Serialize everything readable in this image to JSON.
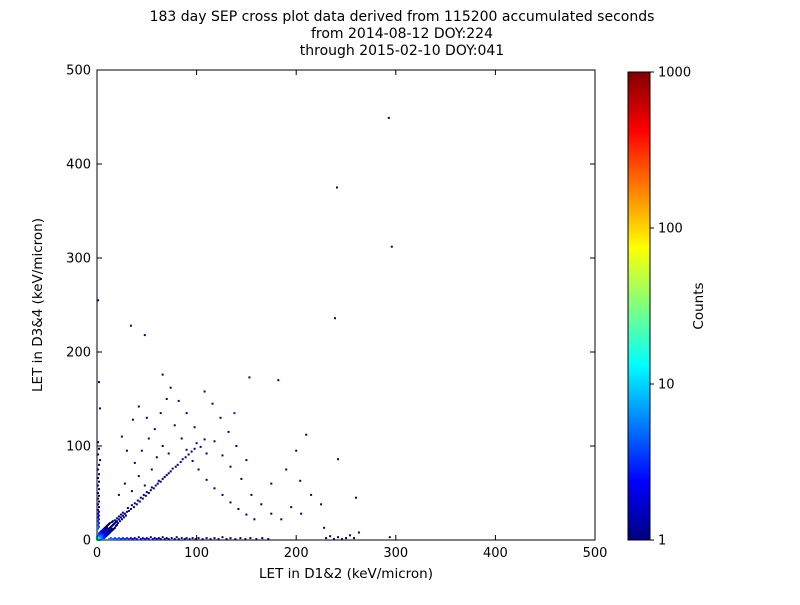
{
  "chart_data": {
    "type": "scatter",
    "title_lines": [
      "183 day SEP cross plot data derived from 115200 accumulated seconds",
      "from 2014-08-12 DOY:224",
      "through 2015-02-10 DOY:041"
    ],
    "xlabel": "LET in D1&2 (keV/micron)",
    "ylabel": "LET in D3&4 (keV/micron)",
    "xlim": [
      0,
      500
    ],
    "ylim": [
      0,
      500
    ],
    "xticks": [
      0,
      100,
      200,
      300,
      400,
      500
    ],
    "yticks": [
      0,
      100,
      200,
      300,
      400,
      500
    ],
    "grid": false,
    "point_color_low": "#000080",
    "colorbar": {
      "label": "Counts",
      "scale": "log",
      "range": [
        1,
        1000
      ],
      "ticks": [
        1,
        10,
        100,
        1000
      ],
      "colormap": "jet",
      "stops": [
        {
          "offset": "0%",
          "color": "#000080"
        },
        {
          "offset": "12.5%",
          "color": "#0000ff"
        },
        {
          "offset": "37.5%",
          "color": "#00ffff"
        },
        {
          "offset": "62.5%",
          "color": "#ffff00"
        },
        {
          "offset": "87.5%",
          "color": "#ff0000"
        },
        {
          "offset": "100%",
          "color": "#800000"
        }
      ]
    },
    "points": [
      [
        0,
        0,
        25
      ],
      [
        1,
        0,
        22
      ],
      [
        0,
        1,
        22
      ],
      [
        1,
        1,
        20
      ],
      [
        2,
        0,
        16
      ],
      [
        0,
        2,
        16
      ],
      [
        2,
        1,
        15
      ],
      [
        1,
        2,
        15
      ],
      [
        2,
        2,
        13
      ],
      [
        3,
        0,
        12
      ],
      [
        0,
        3,
        12
      ],
      [
        3,
        1,
        11
      ],
      [
        1,
        3,
        11
      ],
      [
        3,
        2,
        10
      ],
      [
        2,
        3,
        10
      ],
      [
        3,
        3,
        9
      ],
      [
        4,
        1,
        8
      ],
      [
        1,
        4,
        8
      ],
      [
        4,
        2,
        8
      ],
      [
        2,
        4,
        8
      ],
      [
        4,
        3,
        7
      ],
      [
        3,
        4,
        7
      ],
      [
        4,
        4,
        7
      ],
      [
        5,
        1,
        6
      ],
      [
        1,
        5,
        6
      ],
      [
        5,
        2,
        6
      ],
      [
        2,
        5,
        6
      ],
      [
        5,
        3,
        5
      ],
      [
        3,
        5,
        5
      ],
      [
        5,
        4,
        5
      ],
      [
        4,
        5,
        5
      ],
      [
        5,
        5,
        5
      ],
      [
        6,
        2,
        4
      ],
      [
        2,
        6,
        4
      ],
      [
        6,
        3,
        4
      ],
      [
        3,
        6,
        4
      ],
      [
        6,
        4,
        4
      ],
      [
        4,
        6,
        4
      ],
      [
        6,
        5,
        4
      ],
      [
        5,
        6,
        4
      ],
      [
        6,
        6,
        4
      ],
      [
        7,
        2,
        3
      ],
      [
        2,
        7,
        3
      ],
      [
        7,
        3,
        3
      ],
      [
        3,
        7,
        3
      ],
      [
        7,
        4,
        3
      ],
      [
        4,
        7,
        3
      ],
      [
        7,
        5,
        3
      ],
      [
        5,
        7,
        3
      ],
      [
        7,
        6,
        3
      ],
      [
        6,
        7,
        3
      ],
      [
        7,
        7,
        3
      ],
      [
        8,
        3,
        3
      ],
      [
        3,
        8,
        3
      ],
      [
        8,
        4,
        3
      ],
      [
        4,
        8,
        3
      ],
      [
        8,
        5,
        2
      ],
      [
        5,
        8,
        2
      ],
      [
        8,
        6,
        2
      ],
      [
        6,
        8,
        2
      ],
      [
        8,
        8,
        2
      ],
      [
        9,
        4,
        2
      ],
      [
        4,
        9,
        2
      ],
      [
        9,
        5,
        2
      ],
      [
        5,
        9,
        2
      ],
      [
        9,
        6,
        2
      ],
      [
        6,
        9,
        2
      ],
      [
        9,
        9,
        2
      ],
      [
        10,
        5,
        2
      ],
      [
        5,
        10,
        2
      ],
      [
        10,
        7,
        2
      ],
      [
        7,
        10,
        2
      ],
      [
        10,
        10,
        2
      ],
      [
        11,
        6,
        2
      ],
      [
        6,
        11,
        2
      ],
      [
        11,
        8,
        1
      ],
      [
        8,
        11,
        1
      ],
      [
        11,
        11,
        2
      ],
      [
        12,
        7,
        1
      ],
      [
        7,
        12,
        1
      ],
      [
        12,
        9,
        1
      ],
      [
        9,
        12,
        1
      ],
      [
        12,
        12,
        1
      ],
      [
        13,
        8,
        1
      ],
      [
        8,
        13,
        1
      ],
      [
        13,
        10,
        1
      ],
      [
        10,
        13,
        1
      ],
      [
        13,
        13,
        1
      ],
      [
        14,
        9,
        1
      ],
      [
        9,
        14,
        1
      ],
      [
        14,
        11,
        1
      ],
      [
        14,
        14,
        1
      ],
      [
        15,
        10,
        1
      ],
      [
        10,
        15,
        1
      ],
      [
        15,
        12,
        1
      ],
      [
        15,
        15,
        1
      ],
      [
        16,
        11,
        1
      ],
      [
        11,
        16,
        1
      ],
      [
        16,
        16,
        1
      ],
      [
        17,
        12,
        1
      ],
      [
        12,
        17,
        1
      ],
      [
        17,
        17,
        1
      ],
      [
        18,
        13,
        1
      ],
      [
        13,
        18,
        1
      ],
      [
        18,
        18,
        1
      ],
      [
        19,
        15,
        1
      ],
      [
        15,
        19,
        1
      ],
      [
        19,
        19,
        1
      ],
      [
        20,
        16,
        1
      ],
      [
        16,
        20,
        1
      ],
      [
        20,
        20,
        1
      ],
      [
        21,
        18,
        1
      ],
      [
        18,
        21,
        1
      ],
      [
        22,
        22,
        1
      ],
      [
        23,
        20,
        1
      ],
      [
        20,
        23,
        1
      ],
      [
        24,
        24,
        1
      ],
      [
        25,
        22,
        1
      ],
      [
        22,
        25,
        1
      ],
      [
        26,
        26,
        1
      ],
      [
        27,
        24,
        1
      ],
      [
        24,
        27,
        1
      ],
      [
        28,
        28,
        1
      ],
      [
        29,
        26,
        1
      ],
      [
        26,
        29,
        1
      ],
      [
        30,
        30,
        1
      ],
      [
        32,
        31,
        1
      ],
      [
        31,
        34,
        1
      ],
      [
        34,
        33,
        1
      ],
      [
        35,
        37,
        1
      ],
      [
        37,
        35,
        1
      ],
      [
        38,
        39,
        1
      ],
      [
        40,
        38,
        1
      ],
      [
        41,
        42,
        1
      ],
      [
        43,
        41,
        1
      ],
      [
        44,
        45,
        1
      ],
      [
        46,
        44,
        1
      ],
      [
        47,
        48,
        1
      ],
      [
        49,
        47,
        1
      ],
      [
        50,
        51,
        1
      ],
      [
        52,
        50,
        1
      ],
      [
        54,
        53,
        1
      ],
      [
        55,
        56,
        1
      ],
      [
        57,
        55,
        1
      ],
      [
        59,
        58,
        1
      ],
      [
        61,
        60,
        1
      ],
      [
        62,
        63,
        1
      ],
      [
        64,
        62,
        1
      ],
      [
        66,
        65,
        1
      ],
      [
        68,
        67,
        1
      ],
      [
        70,
        69,
        1
      ],
      [
        72,
        71,
        1
      ],
      [
        74,
        73,
        1
      ],
      [
        76,
        76,
        1
      ],
      [
        79,
        78,
        1
      ],
      [
        81,
        80,
        1
      ],
      [
        84,
        83,
        1
      ],
      [
        86,
        86,
        1
      ],
      [
        89,
        88,
        1
      ],
      [
        92,
        91,
        1
      ],
      [
        95,
        94,
        1
      ],
      [
        98,
        97,
        1
      ],
      [
        100,
        103,
        1
      ],
      [
        104,
        99,
        1
      ],
      [
        108,
        107,
        1
      ],
      [
        12,
        1,
        6
      ],
      [
        14,
        2,
        5
      ],
      [
        16,
        1,
        5
      ],
      [
        18,
        2,
        4
      ],
      [
        20,
        1,
        4
      ],
      [
        22,
        2,
        4
      ],
      [
        24,
        1,
        3
      ],
      [
        26,
        2,
        3
      ],
      [
        28,
        1,
        3
      ],
      [
        30,
        2,
        3
      ],
      [
        32,
        1,
        3
      ],
      [
        34,
        2,
        2
      ],
      [
        36,
        1,
        2
      ],
      [
        38,
        2,
        2
      ],
      [
        40,
        1,
        2
      ],
      [
        42,
        3,
        2
      ],
      [
        44,
        1,
        2
      ],
      [
        46,
        2,
        2
      ],
      [
        48,
        1,
        2
      ],
      [
        50,
        2,
        2
      ],
      [
        52,
        1,
        2
      ],
      [
        54,
        3,
        1
      ],
      [
        56,
        1,
        2
      ],
      [
        58,
        2,
        1
      ],
      [
        60,
        1,
        2
      ],
      [
        62,
        2,
        1
      ],
      [
        64,
        1,
        1
      ],
      [
        66,
        3,
        1
      ],
      [
        68,
        1,
        1
      ],
      [
        70,
        2,
        1
      ],
      [
        72,
        1,
        1
      ],
      [
        75,
        2,
        1
      ],
      [
        78,
        1,
        1
      ],
      [
        80,
        3,
        1
      ],
      [
        82,
        1,
        1
      ],
      [
        85,
        2,
        1
      ],
      [
        88,
        1,
        1
      ],
      [
        90,
        2,
        1
      ],
      [
        93,
        1,
        1
      ],
      [
        96,
        2,
        1
      ],
      [
        99,
        1,
        1
      ],
      [
        102,
        2,
        1
      ],
      [
        106,
        1,
        1
      ],
      [
        110,
        2,
        1
      ],
      [
        114,
        1,
        1
      ],
      [
        118,
        2,
        1
      ],
      [
        122,
        1,
        1
      ],
      [
        126,
        3,
        1
      ],
      [
        130,
        1,
        1
      ],
      [
        134,
        2,
        1
      ],
      [
        139,
        1,
        1
      ],
      [
        144,
        2,
        1
      ],
      [
        149,
        1,
        1
      ],
      [
        154,
        2,
        1
      ],
      [
        160,
        1,
        1
      ],
      [
        166,
        2,
        1
      ],
      [
        172,
        1,
        1
      ],
      [
        230,
        2,
        1
      ],
      [
        234,
        4,
        1
      ],
      [
        238,
        1,
        1
      ],
      [
        242,
        3,
        1
      ],
      [
        246,
        1,
        1
      ],
      [
        250,
        2,
        1
      ],
      [
        254,
        5,
        1
      ],
      [
        258,
        2,
        1
      ],
      [
        263,
        8,
        1
      ],
      [
        294,
        3,
        1
      ],
      [
        1,
        12,
        5
      ],
      [
        2,
        14,
        4
      ],
      [
        1,
        16,
        4
      ],
      [
        2,
        18,
        3
      ],
      [
        1,
        20,
        3
      ],
      [
        2,
        22,
        3
      ],
      [
        1,
        24,
        2
      ],
      [
        2,
        26,
        2
      ],
      [
        1,
        28,
        2
      ],
      [
        2,
        30,
        2
      ],
      [
        1,
        32,
        2
      ],
      [
        2,
        35,
        1
      ],
      [
        1,
        38,
        1
      ],
      [
        2,
        41,
        1
      ],
      [
        1,
        44,
        1
      ],
      [
        2,
        47,
        1
      ],
      [
        1,
        50,
        1
      ],
      [
        2,
        54,
        1
      ],
      [
        1,
        58,
        1
      ],
      [
        2,
        62,
        1
      ],
      [
        1,
        66,
        1
      ],
      [
        2,
        70,
        1
      ],
      [
        1,
        75,
        1
      ],
      [
        2,
        80,
        1
      ],
      [
        3,
        85,
        1
      ],
      [
        1,
        91,
        1
      ],
      [
        2,
        97,
        1
      ],
      [
        1,
        104,
        1
      ],
      [
        3,
        140,
        1
      ],
      [
        2,
        168,
        1
      ],
      [
        1,
        255,
        1
      ],
      [
        22,
        48,
        1
      ],
      [
        28,
        60,
        1
      ],
      [
        35,
        52,
        1
      ],
      [
        42,
        68,
        1
      ],
      [
        48,
        58,
        1
      ],
      [
        55,
        75,
        1
      ],
      [
        38,
        82,
        1
      ],
      [
        30,
        95,
        1
      ],
      [
        25,
        110,
        1
      ],
      [
        45,
        95,
        1
      ],
      [
        52,
        108,
        1
      ],
      [
        60,
        88,
        1
      ],
      [
        66,
        100,
        1
      ],
      [
        72,
        92,
        1
      ],
      [
        58,
        118,
        1
      ],
      [
        50,
        130,
        1
      ],
      [
        42,
        142,
        1
      ],
      [
        36,
        128,
        1
      ],
      [
        64,
        135,
        1
      ],
      [
        70,
        150,
        1
      ],
      [
        78,
        122,
        1
      ],
      [
        85,
        108,
        1
      ],
      [
        90,
        96,
        1
      ],
      [
        96,
        84,
        1
      ],
      [
        102,
        75,
        1
      ],
      [
        110,
        64,
        1
      ],
      [
        118,
        55,
        1
      ],
      [
        126,
        48,
        1
      ],
      [
        134,
        40,
        1
      ],
      [
        142,
        33,
        1
      ],
      [
        150,
        27,
        1
      ],
      [
        158,
        22,
        1
      ],
      [
        110,
        92,
        1
      ],
      [
        118,
        105,
        1
      ],
      [
        126,
        90,
        1
      ],
      [
        134,
        78,
        1
      ],
      [
        98,
        120,
        1
      ],
      [
        90,
        135,
        1
      ],
      [
        82,
        148,
        1
      ],
      [
        74,
        162,
        1
      ],
      [
        66,
        176,
        1
      ],
      [
        145,
        65,
        1
      ],
      [
        155,
        48,
        1
      ],
      [
        165,
        38,
        1
      ],
      [
        175,
        28,
        1
      ],
      [
        185,
        22,
        1
      ],
      [
        195,
        35,
        1
      ],
      [
        205,
        28,
        1
      ],
      [
        215,
        48,
        1
      ],
      [
        225,
        38,
        1
      ],
      [
        175,
        60,
        1
      ],
      [
        190,
        75,
        1
      ],
      [
        200,
        95,
        1
      ],
      [
        210,
        112,
        1
      ],
      [
        150,
        85,
        1
      ],
      [
        140,
        100,
        1
      ],
      [
        132,
        115,
        1
      ],
      [
        124,
        130,
        1
      ],
      [
        116,
        145,
        1
      ],
      [
        108,
        158,
        1
      ],
      [
        293,
        449,
        1
      ],
      [
        241,
        375,
        1
      ],
      [
        296,
        312,
        1
      ],
      [
        239,
        236,
        1
      ],
      [
        34,
        228,
        1
      ],
      [
        48,
        218,
        1
      ],
      [
        153,
        173,
        1
      ],
      [
        182,
        170,
        1
      ],
      [
        138,
        135,
        3
      ],
      [
        242,
        86,
        1
      ],
      [
        204,
        63,
        1
      ],
      [
        228,
        13,
        1
      ],
      [
        260,
        45,
        1
      ]
    ]
  }
}
